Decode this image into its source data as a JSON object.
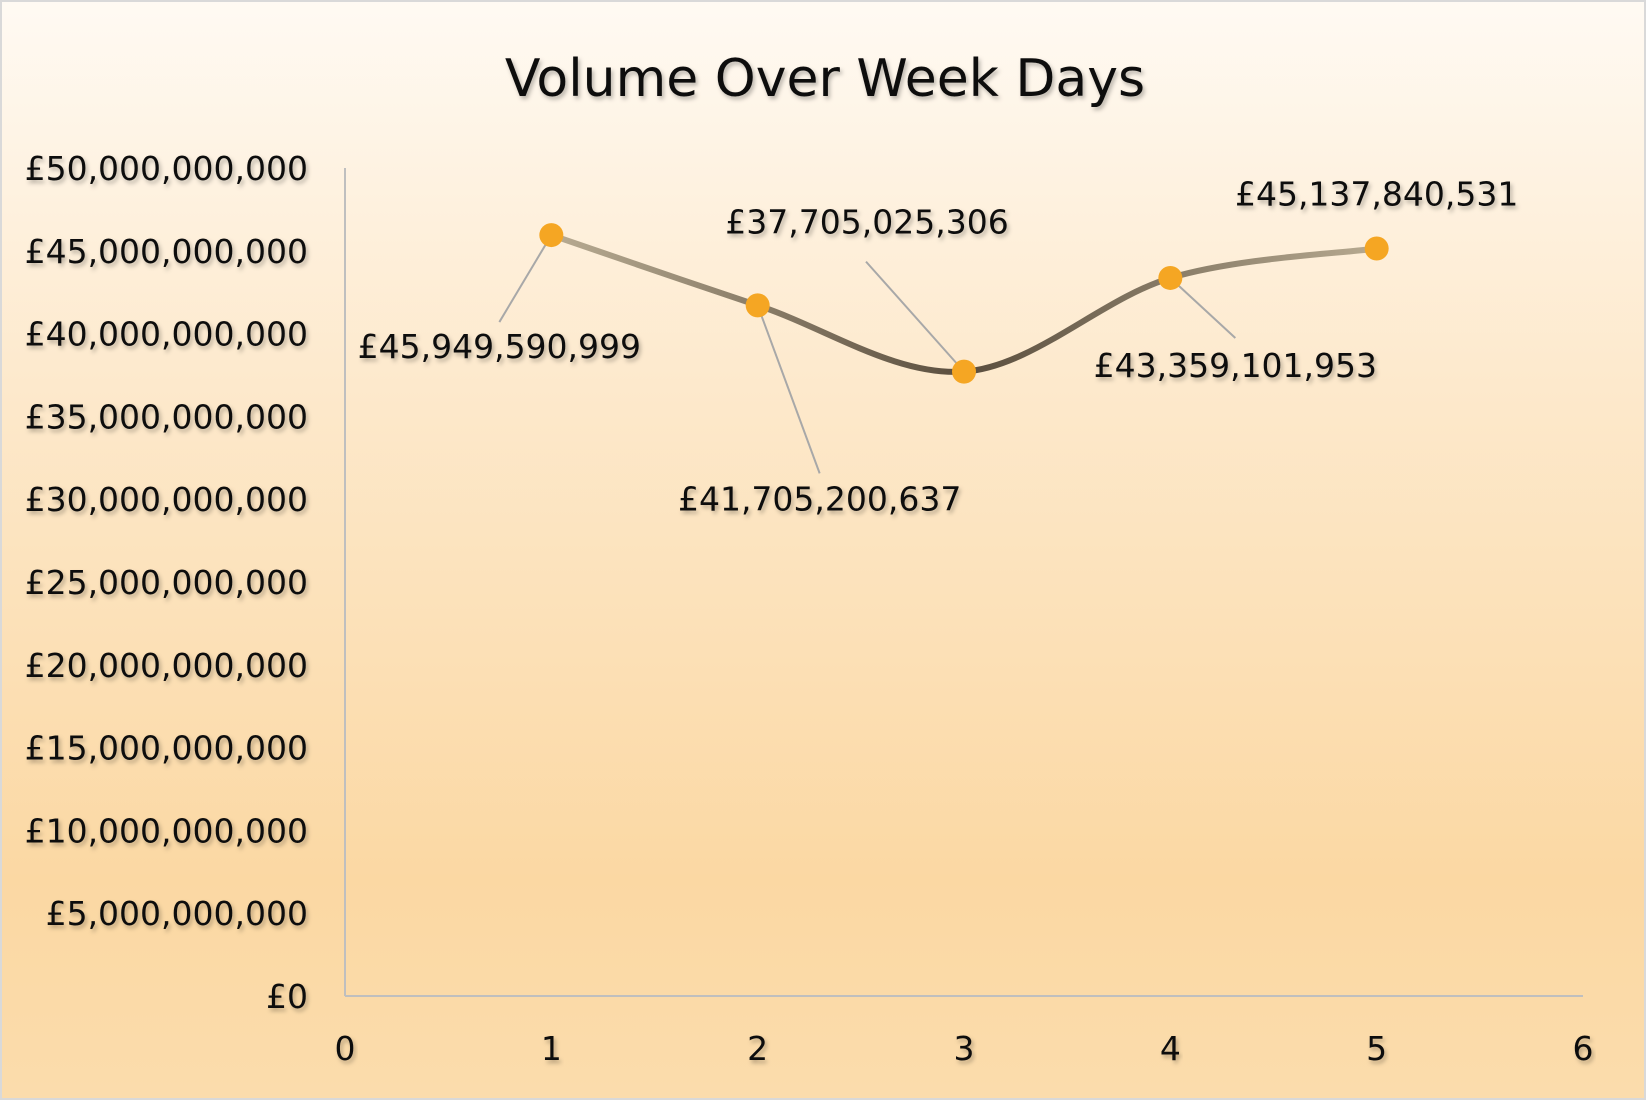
{
  "chart_data": {
    "type": "line",
    "title": "Volume Over Week Days",
    "xlabel": "",
    "ylabel": "",
    "x": [
      1,
      2,
      3,
      4,
      5
    ],
    "series": [
      {
        "values": [
          45949590999,
          41705200637,
          37705025306,
          43359101953,
          45137840531
        ],
        "labels": [
          "£45,949,590,999",
          "£41,705,200,637",
          "£37,705,025,306",
          "£43,359,101,953",
          "£45,137,840,531"
        ]
      }
    ],
    "xlim": [
      0,
      6
    ],
    "ylim": [
      0,
      50000000000
    ],
    "x_ticks": [
      "0",
      "1",
      "2",
      "3",
      "4",
      "5",
      "6"
    ],
    "y_ticks": [
      "£0",
      "£5,000,000,000",
      "£10,000,000,000",
      "£15,000,000,000",
      "£20,000,000,000",
      "£25,000,000,000",
      "£30,000,000,000",
      "£35,000,000,000",
      "£40,000,000,000",
      "£45,000,000,000",
      "£50,000,000,000"
    ],
    "grid": false,
    "legend": "none",
    "colors": {
      "marker": "#f5a623",
      "line_start": "#b8ab92",
      "line_mid": "#5a4e3e",
      "leader": "#a8a8a8",
      "axis": "#bfbfbf"
    }
  }
}
